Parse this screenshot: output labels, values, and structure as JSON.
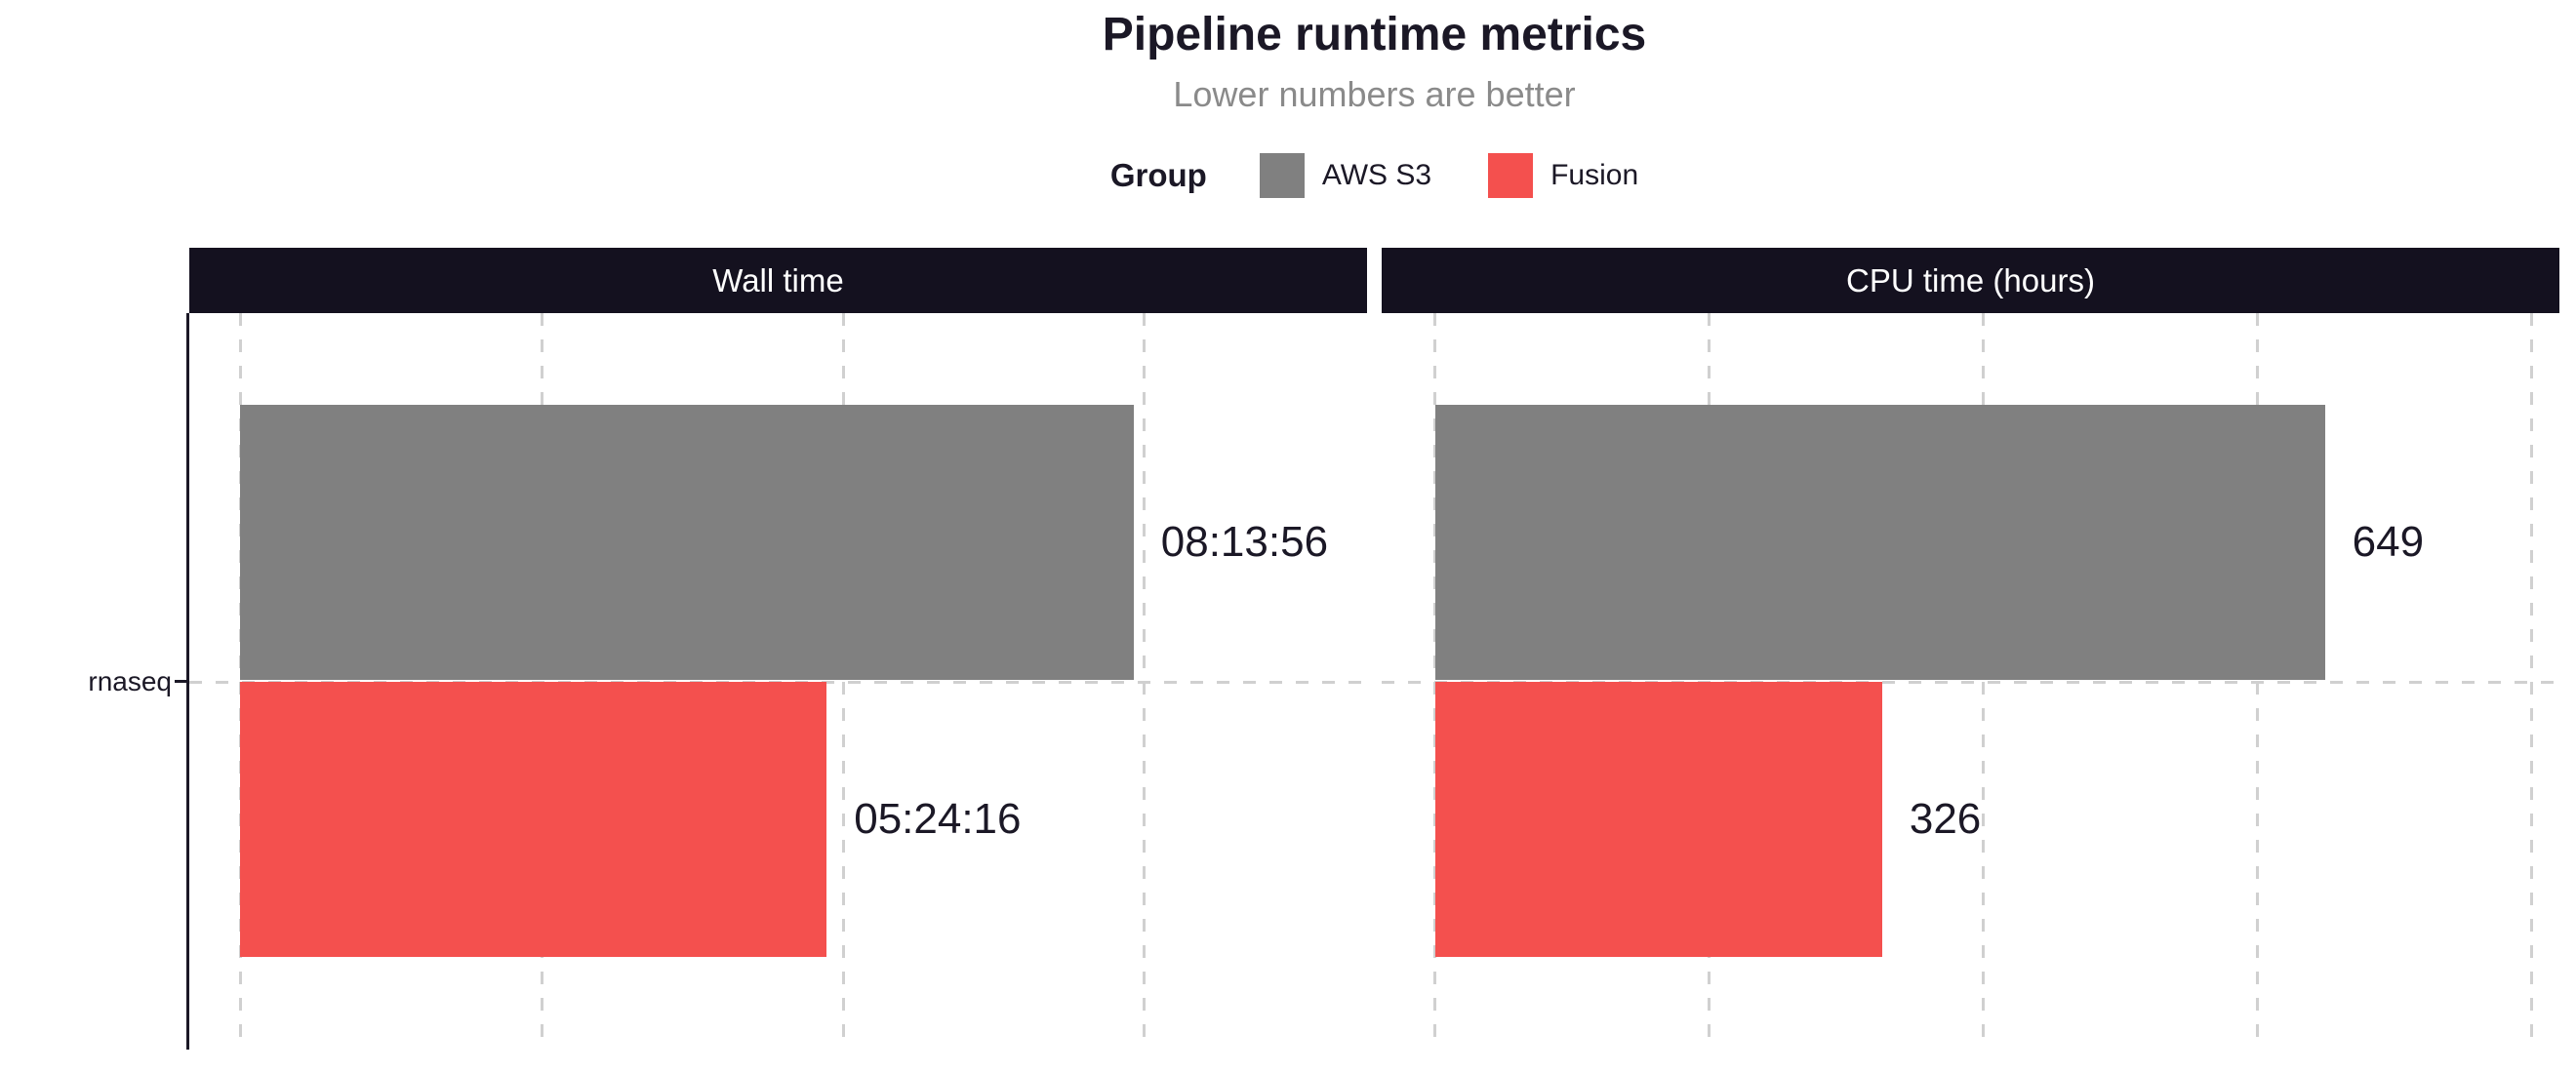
{
  "styles": {
    "background": "#ffffff",
    "text_dark": "#1b1826",
    "subtitle_gray": "#8a8a8a",
    "strip_background": "#14111f",
    "strip_text": "#ffffff",
    "gridline": "#d0d0d0",
    "axis_line": "#1b1826"
  },
  "chart_data": {
    "type": "bar",
    "orientation": "horizontal",
    "title": "Pipeline runtime metrics",
    "subtitle": "Lower numbers are better",
    "grid": "dashed, vertical major gridlines, horizontal category line",
    "legend": {
      "title": "Group",
      "position": "top",
      "entries": [
        {
          "label": "AWS S3",
          "color": "#808080"
        },
        {
          "label": "Fusion",
          "color": "#f4504e"
        }
      ]
    },
    "category_label": "rnaseq",
    "facets": [
      {
        "label": "Wall time",
        "value_format": "hh:mm:ss",
        "unit": "seconds",
        "xlim": [
          -1683,
          37378
        ],
        "gridlines": [
          0,
          10000,
          20000,
          30000
        ],
        "bars": [
          {
            "group": "AWS S3",
            "value": 29636,
            "display": "08:13:56"
          },
          {
            "group": "Fusion",
            "value": 19456,
            "display": "05:24:16"
          }
        ]
      },
      {
        "label": "CPU time (hours)",
        "value_format": "number",
        "unit": "hours",
        "xlim": [
          -39,
          820
        ],
        "gridlines": [
          0,
          200,
          400,
          600,
          800
        ],
        "bars": [
          {
            "group": "AWS S3",
            "value": 649,
            "display": "649"
          },
          {
            "group": "Fusion",
            "value": 326,
            "display": "326"
          }
        ]
      }
    ]
  }
}
